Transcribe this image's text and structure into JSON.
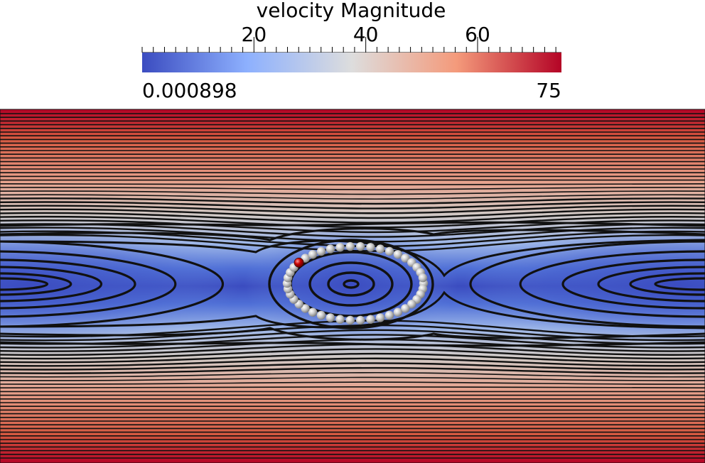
{
  "colorbar": {
    "title": "velocity Magnitude",
    "min_label": "0.000898",
    "max_label": "75",
    "ticks": [
      {
        "label": "20",
        "value": 20
      },
      {
        "label": "40",
        "value": 40
      },
      {
        "label": "60",
        "value": 60
      }
    ],
    "range": [
      0.000898,
      75
    ],
    "colormap": [
      "#3b4cc0",
      "#8db0fe",
      "#dddddd",
      "#f49a7b",
      "#b40426"
    ]
  },
  "flow": {
    "streamline_color": "#111111",
    "particle_color": "#c9c9c9",
    "tracked_particle_color": "#c00000",
    "particle_count": 42
  }
}
